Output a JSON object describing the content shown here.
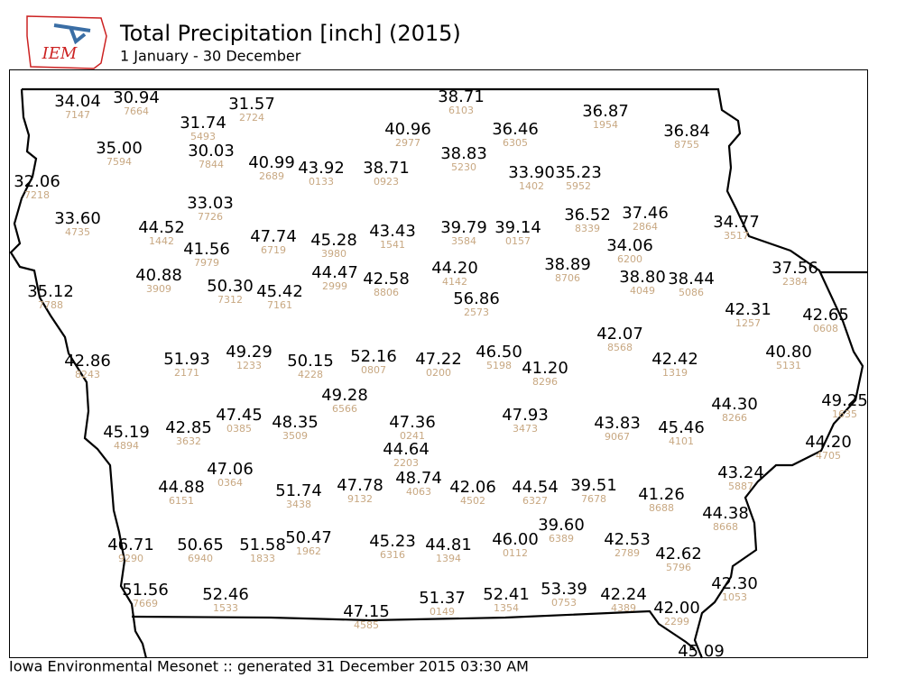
{
  "header": {
    "logo": "IEM",
    "title": "Total Precipitation [inch] (2015)",
    "subtitle": "1 January - 30 December"
  },
  "footer": "Iowa Environmental Mesonet :: generated 31 December 2015 03:30 AM",
  "stations": [
    {
      "value": "34.04",
      "id": "7147"
    },
    {
      "value": "30.94",
      "id": "7664"
    },
    {
      "value": "31.57",
      "id": "2724"
    },
    {
      "value": "38.71",
      "id": "6103"
    },
    {
      "value": "31.74",
      "id": "5493"
    },
    {
      "value": "40.96",
      "id": "2977"
    },
    {
      "value": "36.46",
      "id": "6305"
    },
    {
      "value": "36.87",
      "id": "1954"
    },
    {
      "value": "36.84",
      "id": "8755"
    },
    {
      "value": "35.00",
      "id": "7594"
    },
    {
      "value": "30.03",
      "id": "7844"
    },
    {
      "value": "38.83",
      "id": "5230"
    },
    {
      "value": "40.99",
      "id": "2689"
    },
    {
      "value": "43.92",
      "id": "0133"
    },
    {
      "value": "38.71",
      "id": "0923"
    },
    {
      "value": "33.90",
      "id": "1402"
    },
    {
      "value": "35.23",
      "id": "5952"
    },
    {
      "value": "32.06",
      "id": "7218"
    },
    {
      "value": "33.03",
      "id": "7726"
    },
    {
      "value": "33.60",
      "id": "4735"
    },
    {
      "value": "44.52",
      "id": "1442"
    },
    {
      "value": "47.74",
      "id": "6719"
    },
    {
      "value": "45.28",
      "id": "3980"
    },
    {
      "value": "43.43",
      "id": "1541"
    },
    {
      "value": "39.79",
      "id": "3584"
    },
    {
      "value": "39.14",
      "id": "0157"
    },
    {
      "value": "36.52",
      "id": "8339"
    },
    {
      "value": "37.46",
      "id": "2864"
    },
    {
      "value": "34.77",
      "id": "3517"
    },
    {
      "value": "41.56",
      "id": "7979"
    },
    {
      "value": "34.06",
      "id": "6200"
    },
    {
      "value": "40.88",
      "id": "3909"
    },
    {
      "value": "44.47",
      "id": "2999"
    },
    {
      "value": "42.58",
      "id": "8806"
    },
    {
      "value": "44.20",
      "id": "4142"
    },
    {
      "value": "38.89",
      "id": "8706"
    },
    {
      "value": "38.80",
      "id": "4049"
    },
    {
      "value": "38.44",
      "id": "5086"
    },
    {
      "value": "37.56",
      "id": "2384"
    },
    {
      "value": "50.30",
      "id": "7312"
    },
    {
      "value": "45.42",
      "id": "7161"
    },
    {
      "value": "35.12",
      "id": "7788"
    },
    {
      "value": "56.86",
      "id": "2573"
    },
    {
      "value": "42.31",
      "id": "1257"
    },
    {
      "value": "42.65",
      "id": "0608"
    },
    {
      "value": "42.07",
      "id": "8568"
    },
    {
      "value": "42.86",
      "id": "8243"
    },
    {
      "value": "51.93",
      "id": "2171"
    },
    {
      "value": "49.29",
      "id": "1233"
    },
    {
      "value": "50.15",
      "id": "4228"
    },
    {
      "value": "52.16",
      "id": "0807"
    },
    {
      "value": "47.22",
      "id": "0200"
    },
    {
      "value": "46.50",
      "id": "5198"
    },
    {
      "value": "41.20",
      "id": "8296"
    },
    {
      "value": "42.42",
      "id": "1319"
    },
    {
      "value": "40.80",
      "id": "5131"
    },
    {
      "value": "49.28",
      "id": "6566"
    },
    {
      "value": "44.30",
      "id": "8266"
    },
    {
      "value": "49.25",
      "id": "1635"
    },
    {
      "value": "45.19",
      "id": "4894"
    },
    {
      "value": "42.85",
      "id": "3632"
    },
    {
      "value": "47.45",
      "id": "0385"
    },
    {
      "value": "48.35",
      "id": "3509"
    },
    {
      "value": "47.36",
      "id": "0241"
    },
    {
      "value": "47.93",
      "id": "3473"
    },
    {
      "value": "43.83",
      "id": "9067"
    },
    {
      "value": "45.46",
      "id": "4101"
    },
    {
      "value": "44.20",
      "id": "4705"
    },
    {
      "value": "44.64",
      "id": "2203"
    },
    {
      "value": "47.06",
      "id": "0364"
    },
    {
      "value": "48.74",
      "id": "4063"
    },
    {
      "value": "43.24",
      "id": "5887"
    },
    {
      "value": "44.88",
      "id": "6151"
    },
    {
      "value": "51.74",
      "id": "3438"
    },
    {
      "value": "47.78",
      "id": "9132"
    },
    {
      "value": "42.06",
      "id": "4502"
    },
    {
      "value": "44.54",
      "id": "6327"
    },
    {
      "value": "39.51",
      "id": "7678"
    },
    {
      "value": "41.26",
      "id": "8688"
    },
    {
      "value": "44.38",
      "id": "8668"
    },
    {
      "value": "39.60",
      "id": "6389"
    },
    {
      "value": "46.71",
      "id": "9290"
    },
    {
      "value": "50.65",
      "id": "6940"
    },
    {
      "value": "51.58",
      "id": "1833"
    },
    {
      "value": "50.47",
      "id": "1962"
    },
    {
      "value": "45.23",
      "id": "6316"
    },
    {
      "value": "44.81",
      "id": "1394"
    },
    {
      "value": "46.00",
      "id": "0112"
    },
    {
      "value": "42.53",
      "id": "2789"
    },
    {
      "value": "42.62",
      "id": "5796"
    },
    {
      "value": "51.56",
      "id": "7669"
    },
    {
      "value": "52.46",
      "id": "1533"
    },
    {
      "value": "47.15",
      "id": "4585"
    },
    {
      "value": "51.37",
      "id": "0149"
    },
    {
      "value": "52.41",
      "id": "1354"
    },
    {
      "value": "53.39",
      "id": "0753"
    },
    {
      "value": "42.24",
      "id": "4389"
    },
    {
      "value": "42.30",
      "id": "1053"
    },
    {
      "value": "42.00",
      "id": "2299"
    },
    {
      "value": "45.09"
    }
  ]
}
